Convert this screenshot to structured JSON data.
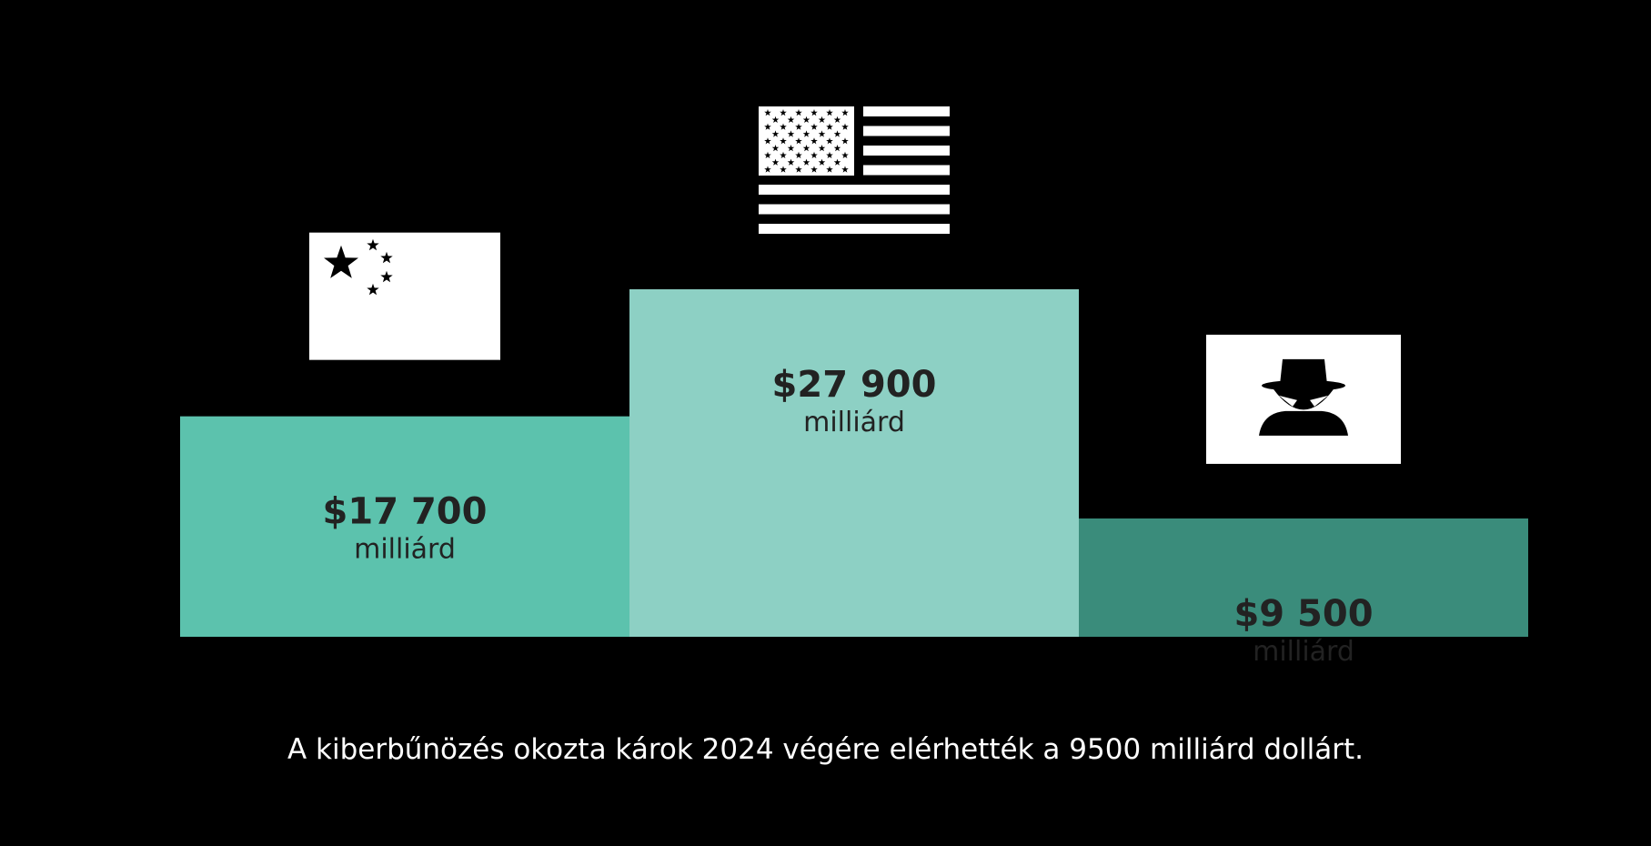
{
  "chart_data": {
    "type": "bar",
    "categories": [
      "Kína",
      "USA",
      "Kiberbűnözés"
    ],
    "values": [
      17700,
      27900,
      9500
    ],
    "value_labels": [
      "$17 700",
      "$27 900",
      "$9 500"
    ],
    "unit_label": "milliárd",
    "icons": [
      "china-flag-icon",
      "usa-flag-icon",
      "hacker-icon"
    ],
    "colors": [
      "#5cc2ad",
      "#8dd0c4",
      "#3a8c7b"
    ],
    "label_color": "#222222",
    "background": "#000000",
    "ylim": [
      0,
      27900
    ],
    "grid": false,
    "legend": "none"
  },
  "caption": "A kiberbűnözés okozta károk 2024 végére elérhették a 9500 milliárd dollárt."
}
